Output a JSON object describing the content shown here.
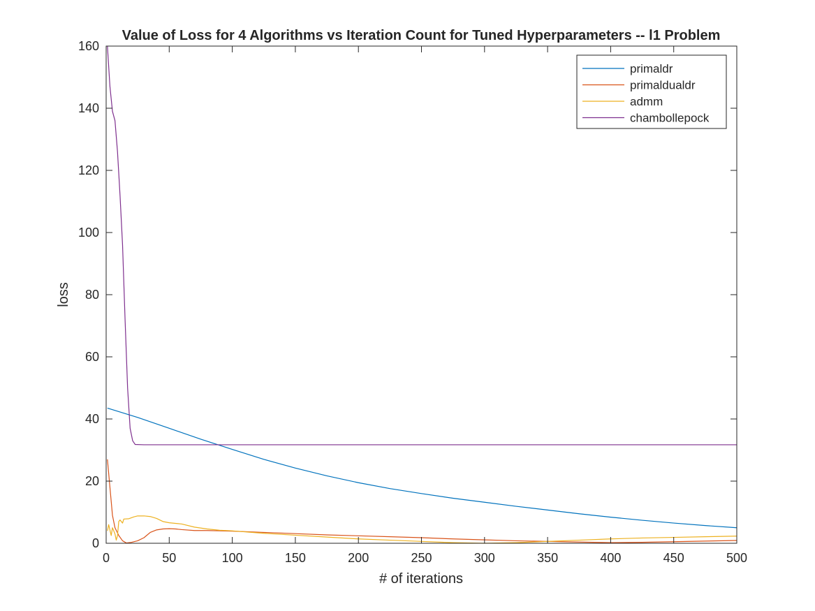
{
  "chart_data": {
    "type": "line",
    "title": "Value of Loss for 4 Algorithms vs Iteration Count for Tuned Hyperparameters -- l1 Problem",
    "xlabel": "# of iterations",
    "ylabel": "loss",
    "xlim": [
      0,
      500
    ],
    "ylim": [
      0,
      160
    ],
    "xticks": [
      0,
      50,
      100,
      150,
      200,
      250,
      300,
      350,
      400,
      450,
      500
    ],
    "yticks": [
      0,
      20,
      40,
      60,
      80,
      100,
      120,
      140,
      160
    ],
    "grid": false,
    "legend_position": "top-right",
    "series": [
      {
        "name": "primaldr",
        "color": "#0072BD",
        "points": [
          [
            1,
            43.5
          ],
          [
            25,
            40.5
          ],
          [
            50,
            37
          ],
          [
            75,
            33.5
          ],
          [
            100,
            30.2
          ],
          [
            125,
            27
          ],
          [
            150,
            24.2
          ],
          [
            175,
            21.7
          ],
          [
            200,
            19.5
          ],
          [
            225,
            17.6
          ],
          [
            250,
            16
          ],
          [
            275,
            14.5
          ],
          [
            300,
            13.2
          ],
          [
            325,
            11.9
          ],
          [
            350,
            10.7
          ],
          [
            375,
            9.5
          ],
          [
            400,
            8.4
          ],
          [
            425,
            7.4
          ],
          [
            450,
            6.5
          ],
          [
            475,
            5.7
          ],
          [
            500,
            5
          ]
        ]
      },
      {
        "name": "primaldualdr",
        "color": "#D95319",
        "points": [
          [
            1,
            27
          ],
          [
            3,
            18
          ],
          [
            5,
            9
          ],
          [
            7,
            5
          ],
          [
            10,
            2.5
          ],
          [
            13,
            0.8
          ],
          [
            16,
            0.1
          ],
          [
            20,
            0.3
          ],
          [
            25,
            0.8
          ],
          [
            30,
            1.8
          ],
          [
            35,
            3.5
          ],
          [
            40,
            4.3
          ],
          [
            45,
            4.6
          ],
          [
            50,
            4.7
          ],
          [
            55,
            4.6
          ],
          [
            60,
            4.4
          ],
          [
            70,
            4.1
          ],
          [
            80,
            4.1
          ],
          [
            90,
            4
          ],
          [
            100,
            3.9
          ],
          [
            125,
            3.5
          ],
          [
            150,
            3.1
          ],
          [
            175,
            2.7
          ],
          [
            200,
            2.4
          ],
          [
            225,
            2.1
          ],
          [
            250,
            1.8
          ],
          [
            275,
            1.4
          ],
          [
            300,
            1.1
          ],
          [
            325,
            0.8
          ],
          [
            350,
            0.6
          ],
          [
            375,
            0.4
          ],
          [
            400,
            0.2
          ],
          [
            425,
            0.3
          ],
          [
            450,
            0.5
          ],
          [
            475,
            0.7
          ],
          [
            500,
            0.9
          ]
        ]
      },
      {
        "name": "admm",
        "color": "#EDB120",
        "points": [
          [
            1,
            4
          ],
          [
            2,
            6
          ],
          [
            4,
            2.5
          ],
          [
            5,
            5
          ],
          [
            6,
            4
          ],
          [
            7,
            3
          ],
          [
            8,
            1
          ],
          [
            9,
            2.5
          ],
          [
            10,
            7
          ],
          [
            11,
            7.5
          ],
          [
            12,
            7
          ],
          [
            13,
            6.5
          ],
          [
            14,
            7.8
          ],
          [
            18,
            7.9
          ],
          [
            22,
            8.5
          ],
          [
            25,
            8.8
          ],
          [
            30,
            8.8
          ],
          [
            35,
            8.6
          ],
          [
            40,
            8
          ],
          [
            45,
            7
          ],
          [
            50,
            6.6
          ],
          [
            60,
            6.2
          ],
          [
            70,
            5.2
          ],
          [
            80,
            4.6
          ],
          [
            90,
            4.2
          ],
          [
            100,
            4
          ],
          [
            125,
            3.2
          ],
          [
            150,
            2.6
          ],
          [
            175,
            2
          ],
          [
            200,
            1.4
          ],
          [
            225,
            1
          ],
          [
            250,
            0.6
          ],
          [
            275,
            0.2
          ],
          [
            300,
            0
          ],
          [
            325,
            0.2
          ],
          [
            350,
            0.6
          ],
          [
            375,
            1
          ],
          [
            400,
            1.4
          ],
          [
            425,
            1.7
          ],
          [
            450,
            1.9
          ],
          [
            475,
            2.1
          ],
          [
            500,
            2.3
          ]
        ]
      },
      {
        "name": "chambollepock",
        "color": "#7E2F8E",
        "points": [
          [
            1,
            160
          ],
          [
            3,
            147
          ],
          [
            5,
            139
          ],
          [
            7,
            136
          ],
          [
            9,
            126
          ],
          [
            11,
            112
          ],
          [
            13,
            96
          ],
          [
            15,
            72
          ],
          [
            17,
            50
          ],
          [
            19,
            37
          ],
          [
            21,
            33
          ],
          [
            23,
            31.8
          ],
          [
            30,
            31.7
          ],
          [
            100,
            31.7
          ],
          [
            200,
            31.7
          ],
          [
            300,
            31.7
          ],
          [
            400,
            31.7
          ],
          [
            500,
            31.7
          ]
        ]
      }
    ]
  }
}
